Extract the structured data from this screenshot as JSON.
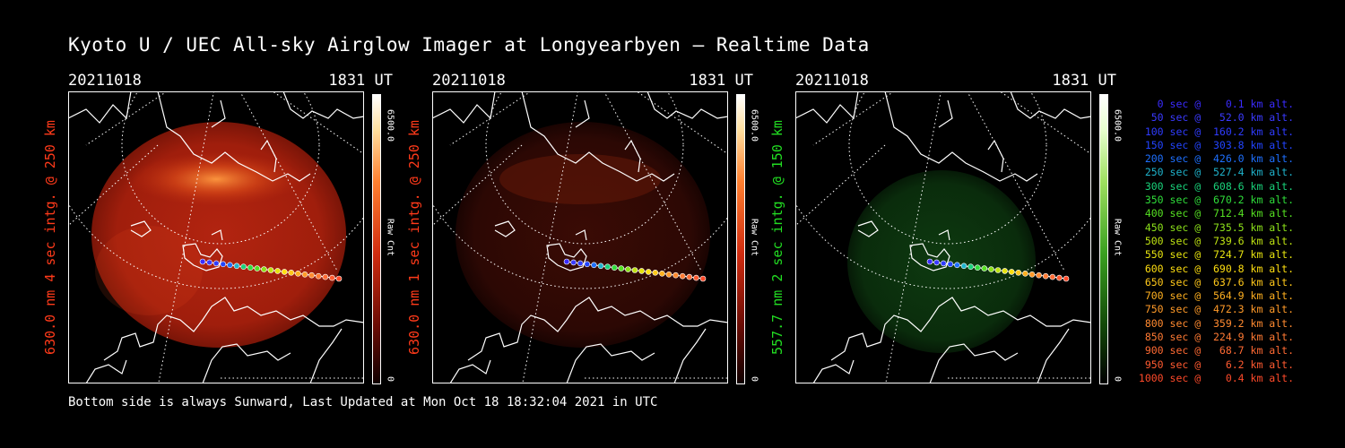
{
  "title": "Kyoto U / UEC All-sky Airglow Imager at Longyearbyen — Realtime Data",
  "footer": "Bottom side is always Sunward, Last Updated at Mon Oct 18 18:32:04 2021 in UTC",
  "panels": [
    {
      "date": "20211018",
      "time": "1831 UT",
      "ylabel": "630.0 nm 4 sec intg. @ 250 km",
      "label_color": "#ff3a1a",
      "colorbar_max": "6500.0",
      "colorbar_unit": "Raw Cnt",
      "colorbar_min": "0",
      "glow": "red-bright",
      "colorbar_type": "red"
    },
    {
      "date": "20211018",
      "time": "1831 UT",
      "ylabel": "630.0 nm 1 sec intg. @ 250 km",
      "label_color": "#ff3a1a",
      "colorbar_max": "6500.0",
      "colorbar_unit": "Raw Cnt",
      "colorbar_min": "0",
      "glow": "red-dim",
      "colorbar_type": "red"
    },
    {
      "date": "20211018",
      "time": "1831 UT",
      "ylabel": "557.7 nm 2 sec intg. @ 150 km",
      "label_color": "#22dd22",
      "colorbar_max": "6500.0",
      "colorbar_unit": "Raw Cnt",
      "colorbar_min": "0",
      "glow": "green",
      "colorbar_type": "green"
    }
  ],
  "legend": [
    {
      "text": "   0 sec @    0.1 km alt.",
      "color": "#3a2bff"
    },
    {
      "text": "  50 sec @   52.0 km alt.",
      "color": "#3a3aff"
    },
    {
      "text": " 100 sec @  160.2 km alt.",
      "color": "#2f3cff"
    },
    {
      "text": " 150 sec @  303.8 km alt.",
      "color": "#2244ff"
    },
    {
      "text": " 200 sec @  426.0 km alt.",
      "color": "#1e70ff"
    },
    {
      "text": " 250 sec @  527.4 km alt.",
      "color": "#1fb3cc"
    },
    {
      "text": " 300 sec @  608.6 km alt.",
      "color": "#19d27a"
    },
    {
      "text": " 350 sec @  670.2 km alt.",
      "color": "#2fdd3a"
    },
    {
      "text": " 400 sec @  712.4 km alt.",
      "color": "#55e022"
    },
    {
      "text": " 450 sec @  735.5 km alt.",
      "color": "#8ce11a"
    },
    {
      "text": " 500 sec @  739.6 km alt.",
      "color": "#bfe312"
    },
    {
      "text": " 550 sec @  724.7 km alt.",
      "color": "#e6e30f"
    },
    {
      "text": " 600 sec @  690.8 km alt.",
      "color": "#ffdf10"
    },
    {
      "text": " 650 sec @  637.6 km alt.",
      "color": "#ffc81a"
    },
    {
      "text": " 700 sec @  564.9 km alt.",
      "color": "#ffb020"
    },
    {
      "text": " 750 sec @  472.3 km alt.",
      "color": "#ff9a28"
    },
    {
      "text": " 800 sec @  359.2 km alt.",
      "color": "#ff8a30"
    },
    {
      "text": " 850 sec @  224.9 km alt.",
      "color": "#ff7a33"
    },
    {
      "text": " 900 sec @   68.7 km alt.",
      "color": "#ff6a33"
    },
    {
      "text": " 950 sec @    6.2 km alt.",
      "color": "#ff5a30"
    },
    {
      "text": "1000 sec @    0.4 km alt.",
      "color": "#ff4a2a"
    }
  ]
}
